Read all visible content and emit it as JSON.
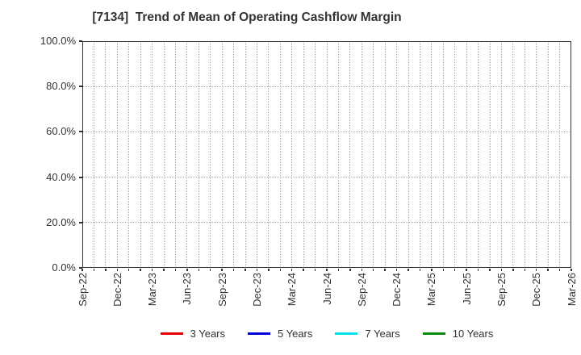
{
  "figure": {
    "title": "[7134]  Trend of Mean of Operating Cashflow Margin"
  },
  "chart_data": {
    "type": "line",
    "title": "[7134]  Trend of Mean of Operating Cashflow Margin",
    "x_axis": {
      "tick_labels": [
        "Sep-22",
        "Dec-22",
        "Mar-23",
        "Jun-23",
        "Sep-23",
        "Dec-23",
        "Mar-24",
        "Jun-24",
        "Sep-24",
        "Dec-24",
        "Mar-25",
        "Jun-25",
        "Sep-25",
        "Dec-25",
        "Mar-26"
      ],
      "months_total": 42,
      "months_per_labeled_tick": 3,
      "minor_grid": "monthly"
    },
    "y_axis": {
      "tick_labels_top_to_bottom": [
        "100.0%",
        "80.0%",
        "60.0%",
        "40.0%",
        "20.0%",
        "0.0%"
      ],
      "min": 0.0,
      "max": 100.0,
      "unit": "%"
    },
    "grid": {
      "style": "dotted",
      "color": "#ababab",
      "on": true
    },
    "series": [
      {
        "name": "3 Years",
        "color": "#e60000",
        "values": []
      },
      {
        "name": "5 Years",
        "color": "#0000dd",
        "values": []
      },
      {
        "name": "7 Years",
        "color": "#00e0ee",
        "values": []
      },
      {
        "name": "10 Years",
        "color": "#0b8a0b",
        "values": []
      }
    ],
    "legend": {
      "position": "bottom-center",
      "labels": [
        "3 Years",
        "5 Years",
        "7 Years",
        "10 Years"
      ]
    },
    "plot_is_empty": true
  },
  "style": {
    "background": "#ffffff",
    "axis_color": "#333333",
    "text_color": "#333333"
  }
}
